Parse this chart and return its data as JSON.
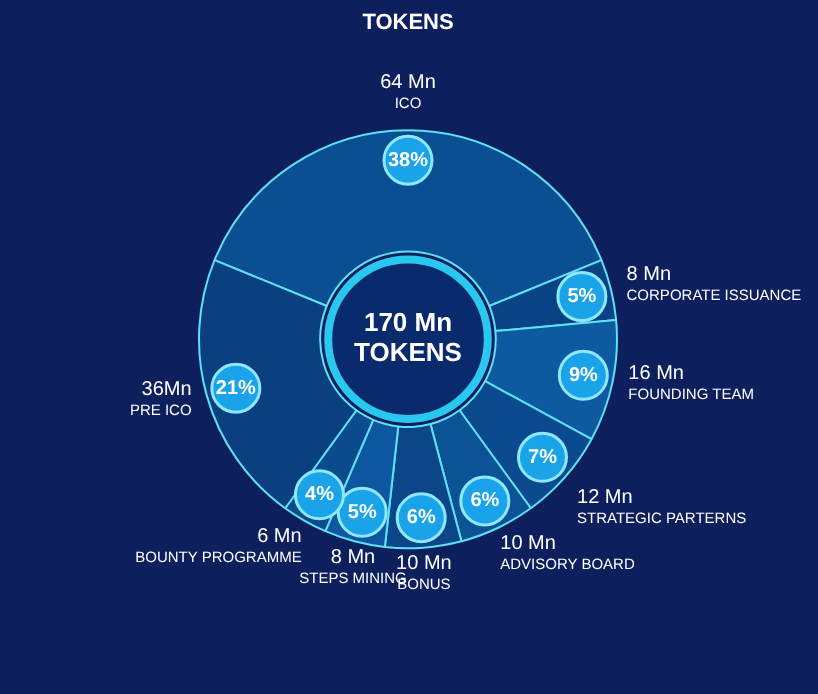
{
  "chart_data": {
    "type": "donut",
    "title": "TOKENS",
    "categories": [
      "ICO",
      "CORPORATE ISSUANCE",
      "FOUNDING TEAM",
      "STRATEGIC PARTERNS",
      "ADVISORY BOARD",
      "BONUS",
      "STEPS MINING",
      "BOUNTY PROGRAMME",
      "PRE ICO"
    ],
    "values": [
      64,
      8,
      16,
      12,
      10,
      10,
      8,
      6,
      36
    ],
    "value_labels": [
      "64 Mn",
      "8 Mn",
      "16 Mn",
      "12 Mn",
      "10 Mn",
      "10 Mn",
      "8 Mn",
      "6 Mn",
      "36Mn"
    ],
    "colors": [
      "#0b4f93",
      "#0a4385",
      "#0d5aa0",
      "#0b4a8e",
      "#0c5396",
      "#0a4688",
      "#0d57a0",
      "#0b4b8e",
      "#0a3f80"
    ],
    "annotations": [
      "170 Mn TOKENS",
      {
        "text": "38%",
        "x": "ICO"
      },
      {
        "text": "5%",
        "x": "CORPORATE ISSUANCE"
      },
      {
        "text": "9%",
        "x": "FOUNDING TEAM"
      },
      {
        "text": "7%",
        "x": "STRATEGIC PARTERNS"
      },
      {
        "text": "6%",
        "x": "ADVISORY BOARD"
      },
      {
        "text": "6%",
        "x": "BONUS"
      },
      {
        "text": "5%",
        "x": "STEPS MINING"
      },
      {
        "text": "4%",
        "x": "BOUNTY PROGRAMME"
      },
      {
        "text": "21%",
        "x": "PRE ICO"
      }
    ]
  }
}
